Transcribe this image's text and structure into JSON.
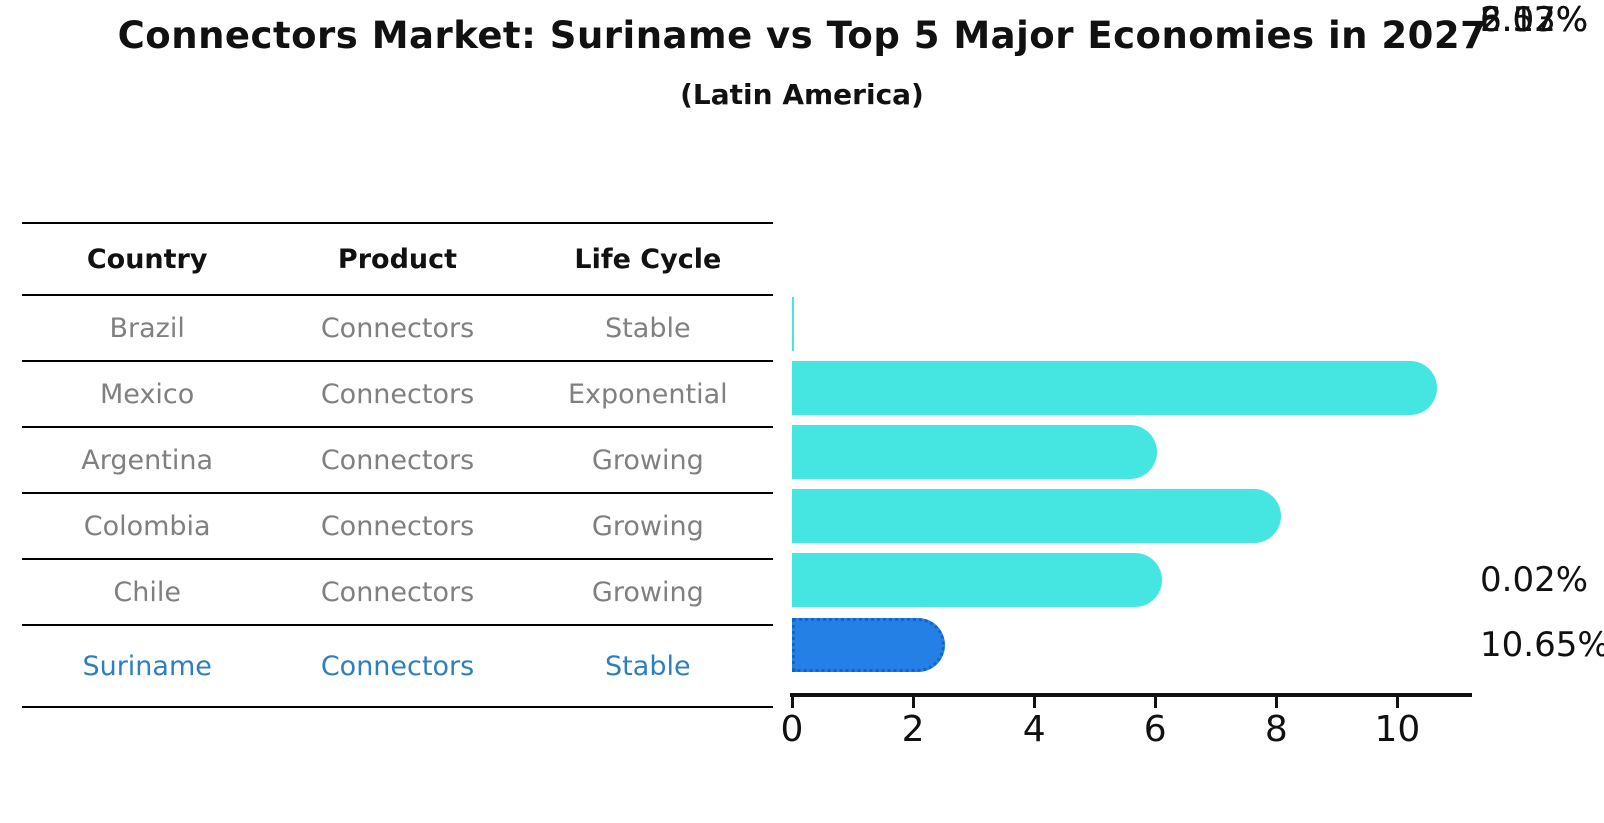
{
  "title": "Connectors Market: Suriname vs Top 5 Major Economies in 2027",
  "subtitle": "(Latin America)",
  "table": {
    "headers": [
      "Country",
      "Product",
      "Life Cycle"
    ],
    "rows": [
      {
        "country": "Brazil",
        "product": "Connectors",
        "life_cycle": "Stable",
        "highlight": false
      },
      {
        "country": "Mexico",
        "product": "Connectors",
        "life_cycle": "Exponential",
        "highlight": false
      },
      {
        "country": "Argentina",
        "product": "Connectors",
        "life_cycle": "Growing",
        "highlight": false
      },
      {
        "country": "Colombia",
        "product": "Connectors",
        "life_cycle": "Growing",
        "highlight": false
      },
      {
        "country": "Chile",
        "product": "Connectors",
        "life_cycle": "Growing",
        "highlight": false
      },
      {
        "country": "Suriname",
        "product": "Connectors",
        "life_cycle": "Stable",
        "highlight": true
      }
    ]
  },
  "chart_data": {
    "type": "bar",
    "orientation": "horizontal",
    "title": "Connectors Market: Suriname vs Top 5 Major Economies in 2027",
    "subtitle": "(Latin America)",
    "categories": [
      "Brazil",
      "Mexico",
      "Argentina",
      "Colombia",
      "Chile",
      "Suriname"
    ],
    "values": [
      0.02,
      10.65,
      6.03,
      8.07,
      6.12,
      2.52
    ],
    "labels": [
      "0.02%",
      "10.65%",
      "6.03%",
      "8.07%",
      "6.12%",
      "2.52%"
    ],
    "x_ticks": [
      0,
      2,
      4,
      6,
      8,
      10
    ],
    "xlim": [
      0,
      11.2
    ],
    "grid": false,
    "legend": "none",
    "highlight_index": 5
  },
  "colors": {
    "bar_fill": "#45e6e1",
    "highlight_fill": "#2480e4",
    "highlight_edge": "#1063d2",
    "table_text": "#808080",
    "highlight_text": "#2e7fc2",
    "axis": "#111111"
  }
}
